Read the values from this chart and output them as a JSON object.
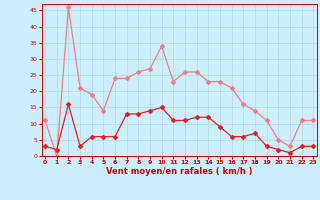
{
  "x": [
    0,
    1,
    2,
    3,
    4,
    5,
    6,
    7,
    8,
    9,
    10,
    11,
    12,
    13,
    14,
    15,
    16,
    17,
    18,
    19,
    20,
    21,
    22,
    23
  ],
  "wind_avg": [
    3,
    2,
    16,
    3,
    6,
    6,
    6,
    13,
    13,
    14,
    15,
    11,
    11,
    12,
    12,
    9,
    6,
    6,
    7,
    3,
    2,
    1,
    3,
    3
  ],
  "wind_gust": [
    11,
    0,
    46,
    21,
    19,
    14,
    24,
    24,
    26,
    27,
    34,
    23,
    26,
    26,
    23,
    23,
    21,
    16,
    14,
    11,
    5,
    3,
    11,
    11
  ],
  "xlabel": "Vent moyen/en rafales ( km/h )",
  "background_color": "#cceeff",
  "grid_color": "#aadddd",
  "avg_color": "#dd2222",
  "gust_color": "#f08080",
  "ylim": [
    0,
    47
  ],
  "yticks": [
    0,
    5,
    10,
    15,
    20,
    25,
    30,
    35,
    40,
    45
  ],
  "xticks": [
    0,
    1,
    2,
    3,
    4,
    5,
    6,
    7,
    8,
    9,
    10,
    11,
    12,
    13,
    14,
    15,
    16,
    17,
    18,
    19,
    20,
    21,
    22,
    23
  ]
}
